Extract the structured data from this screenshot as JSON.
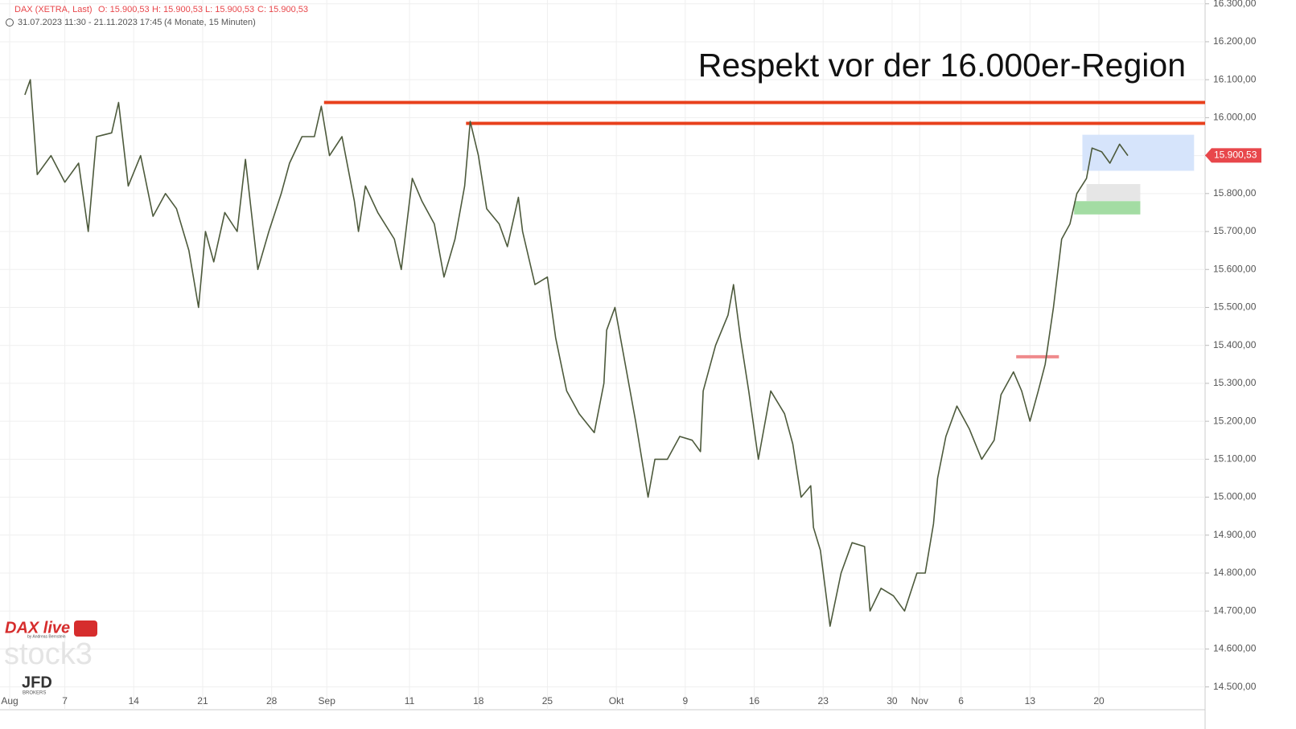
{
  "chart_data": {
    "type": "line",
    "title": "Respekt vor der 16.000er-Region",
    "header": {
      "symbol": "DAX (XETRA, Last)",
      "open": "O: 15.900,53",
      "high": "H: 15.900,53",
      "low": "L: 15.900,53",
      "close": "C: 15.900,53",
      "range": "31.07.2023 11:30 - 21.11.2023 17:45",
      "period": "(4 Monate, 15 Minuten)"
    },
    "logos": [
      "DAX live",
      "by Andreas Bernstein",
      "stock3",
      "JFD",
      "BROKERS"
    ],
    "series": [
      {
        "name": "DAX",
        "color": "#4d5a3c",
        "x": [
          1.1,
          1.5,
          2.0,
          3.0,
          4.0,
          5.0,
          5.7,
          6.3,
          7.4,
          7.9,
          8.6,
          9.5,
          10.4,
          11.3,
          12.1,
          13.0,
          13.7,
          14.2,
          14.8,
          15.6,
          16.5,
          17.1,
          18.0,
          18.8,
          19.7,
          20.3,
          21.2,
          22.1,
          22.6,
          23.2,
          24.1,
          25.0,
          25.3,
          25.8,
          26.7,
          27.9,
          28.4,
          29.2,
          29.9,
          30.8,
          31.5,
          32.3,
          33.0,
          33.4,
          34.0,
          34.6,
          35.5,
          36.1,
          36.9,
          37.2,
          38.1,
          39.0,
          39.6,
          40.4,
          41.3,
          42.4,
          43.1,
          43.3,
          43.9,
          44.5,
          45.4,
          46.3,
          46.8,
          47.7,
          48.6,
          49.5,
          50.1,
          50.3,
          51.2,
          52.1,
          52.5,
          53.0,
          53.6,
          54.3,
          55.2,
          56.2,
          56.8,
          57.4,
          58.1,
          58.3,
          58.8,
          59.5,
          60.3,
          61.1,
          62.0,
          62.4,
          63.2,
          64.1,
          64.9,
          65.8,
          66.4,
          67.0,
          67.3,
          67.9,
          68.7,
          69.6,
          70.5,
          71.4,
          71.9,
          72.8,
          73.4,
          74.0,
          74.6,
          75.1,
          75.7,
          76.3,
          76.9,
          77.4,
          78.1,
          78.5,
          79.2,
          79.8,
          80.5,
          81.1
        ],
        "values": [
          16060,
          16100,
          15850,
          15900,
          15830,
          15880,
          15700,
          15950,
          15960,
          16040,
          15820,
          15900,
          15740,
          15800,
          15760,
          15650,
          15500,
          15700,
          15620,
          15750,
          15700,
          15890,
          15600,
          15700,
          15800,
          15880,
          15950,
          15950,
          16030,
          15900,
          15950,
          15780,
          15700,
          15820,
          15750,
          15680,
          15600,
          15840,
          15780,
          15720,
          15580,
          15680,
          15820,
          15990,
          15900,
          15760,
          15720,
          15660,
          15790,
          15700,
          15560,
          15580,
          15420,
          15280,
          15220,
          15170,
          15300,
          15440,
          15500,
          15380,
          15200,
          15000,
          15100,
          15100,
          15160,
          15150,
          15120,
          15280,
          15400,
          15480,
          15560,
          15420,
          15280,
          15100,
          15280,
          15220,
          15140,
          15000,
          15030,
          14920,
          14860,
          14660,
          14800,
          14880,
          14870,
          14700,
          14760,
          14740,
          14700,
          14800,
          14800,
          14930,
          15050,
          15160,
          15240,
          15180,
          15100,
          15150,
          15270,
          15330,
          15280,
          15200,
          15280,
          15350,
          15500,
          15680,
          15720,
          15800,
          15840,
          15920,
          15910,
          15880,
          15930,
          15900
        ]
      }
    ],
    "last_price": {
      "value": 15900.53,
      "label": "15.900,53",
      "color": "#e8474b"
    },
    "levels": [
      {
        "value": 16040,
        "start": 22.8,
        "end": 86.7,
        "color": "#e8401c"
      },
      {
        "value": 15985,
        "start": 33.1,
        "end": 86.7,
        "color": "#e8401c"
      },
      {
        "value": 15370,
        "start": 73.0,
        "end": 76.1,
        "color": "#ef8a8c"
      }
    ],
    "zones": [
      {
        "y": [
          15860,
          15955
        ],
        "x": [
          77.8,
          85.9
        ],
        "color": "#d6e4fb"
      },
      {
        "y": [
          15780,
          15825
        ],
        "x": [
          78.1,
          82.0
        ],
        "color": "#e6e6e6"
      },
      {
        "y": [
          15745,
          15780
        ],
        "x": [
          77.2,
          82.0
        ],
        "color": "#a3dca3"
      }
    ],
    "xlim": [
      -0.7,
      86.7
    ],
    "ylim": [
      14440,
      16310
    ],
    "xticks": [
      {
        "value": 0,
        "label": "Aug"
      },
      {
        "value": 4,
        "label": "7"
      },
      {
        "value": 9,
        "label": "14"
      },
      {
        "value": 14,
        "label": "21"
      },
      {
        "value": 19,
        "label": "28"
      },
      {
        "value": 23,
        "label": "Sep"
      },
      {
        "value": 29,
        "label": "11"
      },
      {
        "value": 34,
        "label": "18"
      },
      {
        "value": 39,
        "label": "25"
      },
      {
        "value": 44,
        "label": "Okt"
      },
      {
        "value": 49,
        "label": "9"
      },
      {
        "value": 54,
        "label": "16"
      },
      {
        "value": 59,
        "label": "23"
      },
      {
        "value": 64,
        "label": "30"
      },
      {
        "value": 66,
        "label": "Nov"
      },
      {
        "value": 69,
        "label": "6"
      },
      {
        "value": 74,
        "label": "13"
      },
      {
        "value": 79,
        "label": "20"
      }
    ],
    "yticks": [
      {
        "value": 14500,
        "label": "14.500,00"
      },
      {
        "value": 14600,
        "label": "14.600,00"
      },
      {
        "value": 14700,
        "label": "14.700,00"
      },
      {
        "value": 14800,
        "label": "14.800,00"
      },
      {
        "value": 14900,
        "label": "14.900,00"
      },
      {
        "value": 15000,
        "label": "15.000,00"
      },
      {
        "value": 15100,
        "label": "15.100,00"
      },
      {
        "value": 15200,
        "label": "15.200,00"
      },
      {
        "value": 15300,
        "label": "15.300,00"
      },
      {
        "value": 15400,
        "label": "15.400,00"
      },
      {
        "value": 15500,
        "label": "15.500,00"
      },
      {
        "value": 15600,
        "label": "15.600,00"
      },
      {
        "value": 15700,
        "label": "15.700,00"
      },
      {
        "value": 15800,
        "label": "15.800,00"
      },
      {
        "value": 15900,
        "label": "15.900,00"
      },
      {
        "value": 16000,
        "label": "16.000,00"
      },
      {
        "value": 16100,
        "label": "16.100,00"
      },
      {
        "value": 16200,
        "label": "16.200,00"
      },
      {
        "value": 16300,
        "label": "16.300,00"
      }
    ],
    "grid": true
  }
}
